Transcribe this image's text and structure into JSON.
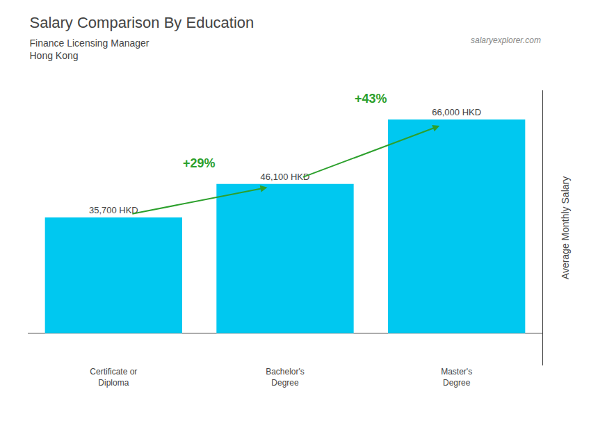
{
  "chart_data": {
    "type": "bar",
    "title": "Salary Comparison By Education",
    "subtitle": [
      "Finance Licensing Manager",
      "Hong Kong"
    ],
    "ylabel": "Average Monthly Salary",
    "note": "salaryexplorer.com",
    "categories": [
      "Certificate or\nDiploma",
      "Bachelor's\nDegree",
      "Master's\nDegree"
    ],
    "values": [
      35700,
      46100,
      66000
    ],
    "value_labels": [
      "35,700 HKD",
      "46,100 HKD",
      "66,000 HKD"
    ],
    "data_labels": true,
    "annotations": [
      "+29%",
      "+43%"
    ],
    "color": "#00c8f0",
    "ylim": [
      -10000,
      75000
    ],
    "tick_labels": "x",
    "grid": false
  }
}
